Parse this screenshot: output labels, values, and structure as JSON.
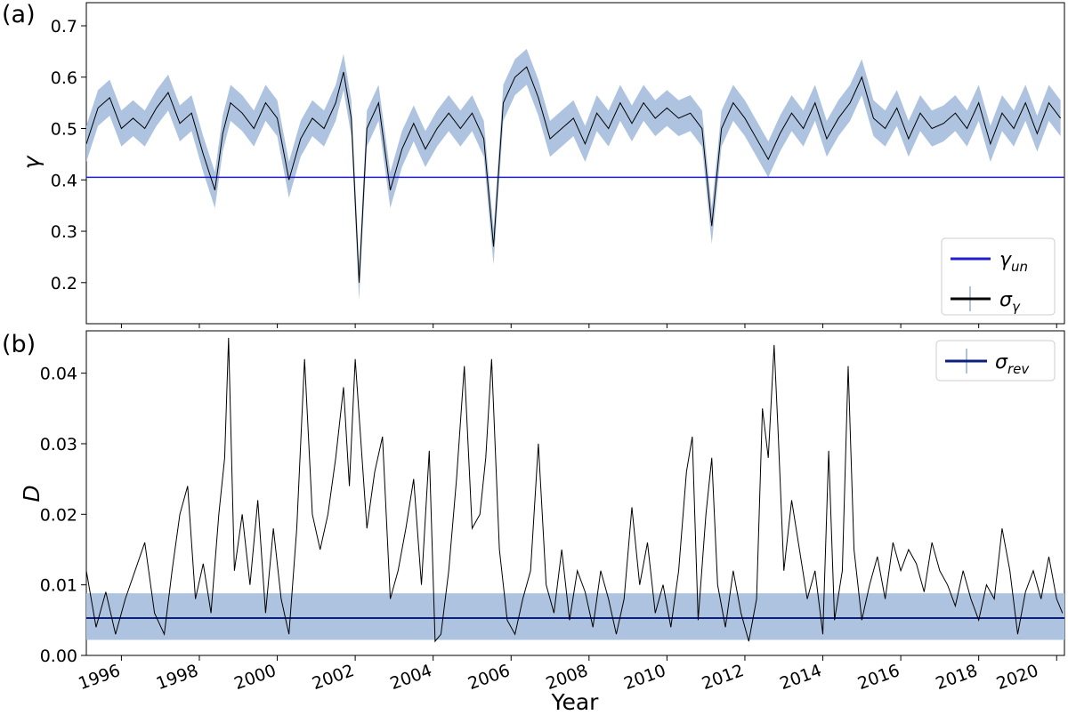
{
  "chart_data": [
    {
      "panel_label": "(a)",
      "type": "line",
      "ylabel": "γ",
      "xlabel": "",
      "xlim": [
        1995.1,
        2020.2
      ],
      "ylim": [
        0.12,
        0.745
      ],
      "yticks": [
        0.2,
        0.3,
        0.4,
        0.5,
        0.6,
        0.7
      ],
      "ytick_labels": [
        "0.2",
        "0.3",
        "0.4",
        "0.5",
        "0.6",
        "0.7"
      ],
      "grid": false,
      "legend_position": "bottom-right",
      "legend": [
        {
          "label_main": "γ",
          "label_sub": "un",
          "color": "#1f1fcf",
          "style": "line"
        },
        {
          "label_main": "σ",
          "label_sub": "γ",
          "color": "#000000",
          "style": "line-with-errorbar"
        }
      ],
      "reference_line": {
        "y": 0.405,
        "color": "#1f1fcf"
      },
      "error_band": {
        "color": "#aec3e0",
        "half_width": 0.035
      },
      "series": [
        {
          "color": "#000000",
          "x": [
            1995.1,
            1995.4,
            1995.7,
            1996.0,
            1996.3,
            1996.6,
            1996.9,
            1997.2,
            1997.5,
            1997.8,
            1998.1,
            1998.4,
            1998.6,
            1998.8,
            1999.1,
            1999.4,
            1999.7,
            2000.0,
            2000.3,
            2000.6,
            2000.9,
            2001.2,
            2001.5,
            2001.7,
            2001.9,
            2002.1,
            2002.3,
            2002.6,
            2002.9,
            2003.2,
            2003.5,
            2003.8,
            2004.1,
            2004.4,
            2004.7,
            2005.0,
            2005.3,
            2005.55,
            2005.8,
            2006.1,
            2006.4,
            2006.7,
            2007.0,
            2007.3,
            2007.6,
            2007.9,
            2008.2,
            2008.5,
            2008.8,
            2009.1,
            2009.4,
            2009.7,
            2010.0,
            2010.3,
            2010.6,
            2010.9,
            2011.15,
            2011.4,
            2011.7,
            2012.0,
            2012.3,
            2012.6,
            2012.9,
            2013.2,
            2013.5,
            2013.8,
            2014.1,
            2014.4,
            2014.7,
            2015.0,
            2015.3,
            2015.6,
            2015.9,
            2016.2,
            2016.5,
            2016.8,
            2017.1,
            2017.4,
            2017.7,
            2018.0,
            2018.3,
            2018.6,
            2018.9,
            2019.2,
            2019.5,
            2019.8,
            2020.1
          ],
          "y": [
            0.47,
            0.54,
            0.56,
            0.5,
            0.52,
            0.5,
            0.54,
            0.57,
            0.51,
            0.53,
            0.45,
            0.38,
            0.49,
            0.55,
            0.53,
            0.5,
            0.55,
            0.52,
            0.4,
            0.48,
            0.52,
            0.5,
            0.55,
            0.61,
            0.52,
            0.2,
            0.5,
            0.55,
            0.38,
            0.46,
            0.51,
            0.46,
            0.5,
            0.53,
            0.5,
            0.53,
            0.48,
            0.27,
            0.55,
            0.6,
            0.62,
            0.56,
            0.48,
            0.5,
            0.52,
            0.47,
            0.53,
            0.5,
            0.55,
            0.51,
            0.55,
            0.52,
            0.54,
            0.52,
            0.53,
            0.5,
            0.31,
            0.5,
            0.55,
            0.52,
            0.48,
            0.44,
            0.49,
            0.53,
            0.5,
            0.55,
            0.48,
            0.52,
            0.55,
            0.6,
            0.52,
            0.5,
            0.54,
            0.48,
            0.53,
            0.5,
            0.51,
            0.53,
            0.5,
            0.55,
            0.47,
            0.53,
            0.5,
            0.55,
            0.49,
            0.55,
            0.52
          ]
        }
      ]
    },
    {
      "panel_label": "(b)",
      "type": "line",
      "ylabel": "D",
      "xlabel": "Year",
      "xlim": [
        1995.1,
        2020.2
      ],
      "ylim": [
        0.0,
        0.046
      ],
      "yticks": [
        0.0,
        0.01,
        0.02,
        0.03,
        0.04
      ],
      "ytick_labels": [
        "0.00",
        "0.01",
        "0.02",
        "0.03",
        "0.04"
      ],
      "xticks": [
        1996,
        1998,
        2000,
        2002,
        2004,
        2006,
        2008,
        2010,
        2012,
        2014,
        2016,
        2018,
        2020
      ],
      "xtick_labels": [
        "1996",
        "1998",
        "2000",
        "2002",
        "2004",
        "2006",
        "2008",
        "2010",
        "2012",
        "2014",
        "2016",
        "2018",
        "2020"
      ],
      "grid": false,
      "legend_position": "top-right",
      "legend": [
        {
          "label_main": "σ",
          "label_sub": "rev",
          "color": "#0c1f7a",
          "style": "line-with-errorbar"
        }
      ],
      "reference_line": {
        "y": 0.0053,
        "color": "#0c1f7a"
      },
      "error_band": {
        "color": "#aec3e0",
        "lower": 0.0022,
        "upper": 0.0088
      },
      "series": [
        {
          "color": "#000000",
          "x": [
            1995.1,
            1995.35,
            1995.6,
            1995.85,
            1996.1,
            1996.35,
            1996.6,
            1996.85,
            1997.1,
            1997.3,
            1997.5,
            1997.7,
            1997.9,
            1998.1,
            1998.3,
            1998.5,
            1998.65,
            1998.75,
            1998.9,
            1999.1,
            1999.3,
            1999.5,
            1999.7,
            1999.9,
            2000.1,
            2000.3,
            2000.5,
            2000.7,
            2000.9,
            2001.1,
            2001.3,
            2001.5,
            2001.7,
            2001.85,
            2002.0,
            2002.15,
            2002.3,
            2002.5,
            2002.7,
            2002.9,
            2003.1,
            2003.3,
            2003.5,
            2003.7,
            2003.9,
            2004.05,
            2004.2,
            2004.4,
            2004.6,
            2004.8,
            2005.0,
            2005.2,
            2005.35,
            2005.5,
            2005.7,
            2005.9,
            2006.1,
            2006.3,
            2006.5,
            2006.7,
            2006.9,
            2007.1,
            2007.3,
            2007.5,
            2007.7,
            2007.9,
            2008.1,
            2008.3,
            2008.5,
            2008.7,
            2008.9,
            2009.1,
            2009.3,
            2009.5,
            2009.7,
            2009.9,
            2010.1,
            2010.3,
            2010.5,
            2010.65,
            2010.8,
            2011.0,
            2011.15,
            2011.3,
            2011.5,
            2011.7,
            2011.9,
            2012.1,
            2012.3,
            2012.45,
            2012.6,
            2012.75,
            2012.85,
            2013.0,
            2013.2,
            2013.4,
            2013.6,
            2013.8,
            2014.0,
            2014.15,
            2014.3,
            2014.5,
            2014.65,
            2014.8,
            2015.0,
            2015.2,
            2015.4,
            2015.6,
            2015.8,
            2016.0,
            2016.2,
            2016.4,
            2016.6,
            2016.8,
            2017.0,
            2017.2,
            2017.4,
            2017.6,
            2017.8,
            2018.0,
            2018.2,
            2018.4,
            2018.6,
            2018.8,
            2019.0,
            2019.2,
            2019.4,
            2019.6,
            2019.8,
            2020.0,
            2020.15
          ],
          "y": [
            0.012,
            0.004,
            0.009,
            0.003,
            0.008,
            0.012,
            0.016,
            0.006,
            0.003,
            0.012,
            0.02,
            0.024,
            0.008,
            0.013,
            0.006,
            0.02,
            0.028,
            0.045,
            0.012,
            0.02,
            0.01,
            0.022,
            0.006,
            0.018,
            0.008,
            0.003,
            0.018,
            0.042,
            0.02,
            0.015,
            0.02,
            0.028,
            0.038,
            0.024,
            0.042,
            0.03,
            0.018,
            0.026,
            0.031,
            0.008,
            0.012,
            0.018,
            0.025,
            0.01,
            0.029,
            0.002,
            0.003,
            0.012,
            0.025,
            0.041,
            0.018,
            0.02,
            0.028,
            0.042,
            0.015,
            0.005,
            0.003,
            0.008,
            0.012,
            0.03,
            0.01,
            0.006,
            0.015,
            0.005,
            0.012,
            0.009,
            0.004,
            0.012,
            0.008,
            0.003,
            0.008,
            0.021,
            0.01,
            0.016,
            0.006,
            0.01,
            0.004,
            0.012,
            0.026,
            0.031,
            0.005,
            0.02,
            0.028,
            0.01,
            0.004,
            0.012,
            0.006,
            0.002,
            0.008,
            0.035,
            0.028,
            0.044,
            0.032,
            0.012,
            0.022,
            0.015,
            0.008,
            0.012,
            0.003,
            0.029,
            0.005,
            0.012,
            0.041,
            0.015,
            0.005,
            0.01,
            0.014,
            0.008,
            0.016,
            0.012,
            0.015,
            0.013,
            0.009,
            0.016,
            0.012,
            0.01,
            0.007,
            0.012,
            0.008,
            0.005,
            0.01,
            0.008,
            0.018,
            0.012,
            0.003,
            0.009,
            0.012,
            0.008,
            0.014,
            0.008,
            0.006
          ]
        }
      ]
    }
  ]
}
